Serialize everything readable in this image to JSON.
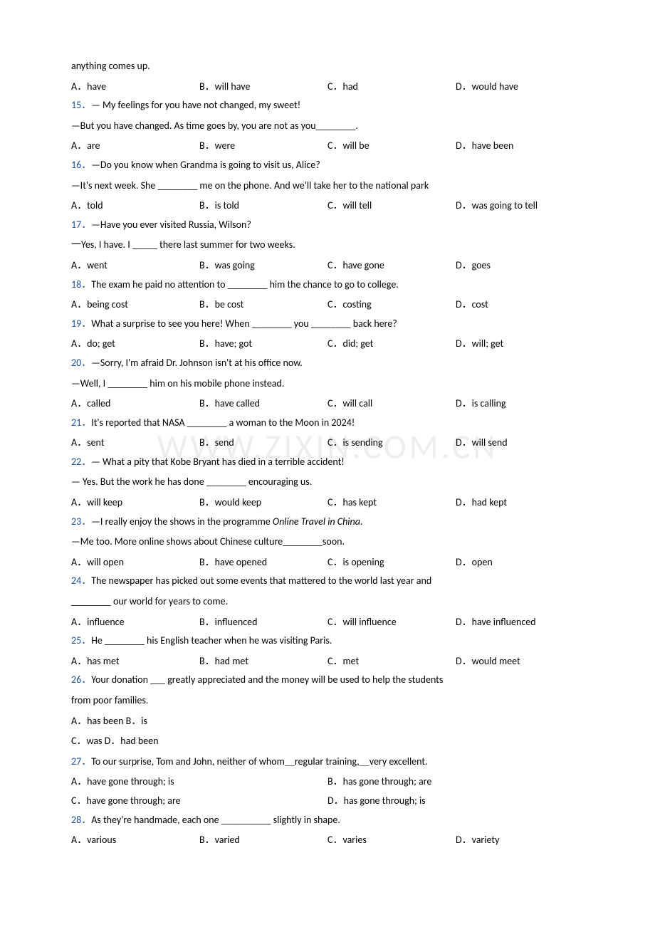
{
  "watermark": "WWW.ZIXIN.COM.CN",
  "frag_top": "anything comes up.",
  "q14_opts": [
    "A．have",
    "B．will have",
    "C．had",
    "D．would have"
  ],
  "q15_num": "15．",
  "q15_l1": "— My feelings for you have not changed, my sweet!",
  "q15_l2": "—But you have changed. As time goes by, you are not as you________.",
  "q15_opts": [
    "A．are",
    "B．were",
    "C．will be",
    "D．have been"
  ],
  "q16_num": "16．",
  "q16_l1": "—Do you know when Grandma is going to visit us, Alice?",
  "q16_l2": "—It's next week. She ________ me on the phone. And we'll take her to the national park",
  "q16_opts": [
    "A．told",
    "B．is told",
    "C．will tell",
    "D．was going to tell"
  ],
  "q17_num": "17．",
  "q17_l1": "—Have you ever visited Russia, Wilson?",
  "q17_l2": "一Yes, I have. I _____ there last summer for two weeks.",
  "q17_opts": [
    "A．went",
    "B．was going",
    "C．have gone",
    "D．goes"
  ],
  "q18_num": "18．",
  "q18_l1": "The exam he paid no attention to ________ him the chance to go to college.",
  "q18_opts": [
    "A．being cost",
    "B．be cost",
    "C．costing",
    "D．cost"
  ],
  "q19_num": "19．",
  "q19_l1": "What a surprise to see you here! When ________ you ________ back here?",
  "q19_opts": [
    "A．do; get",
    "B．have; got",
    "C．did; get",
    "D．will; get"
  ],
  "q20_num": "20．",
  "q20_l1": "—Sorry, I'm afraid Dr. Johnson isn't at his office now.",
  "q20_l2": "—Well, I ________ him on his mobile phone instead.",
  "q20_opts": [
    "A．called",
    "B．have called",
    "C．will call",
    "D．is calling"
  ],
  "q21_num": "21．",
  "q21_l1": "It's reported that NASA ________ a woman to the Moon in 2024!",
  "q21_opts": [
    "A．sent",
    "B．send",
    "C．is sending",
    "D．will send"
  ],
  "q22_num": "22．",
  "q22_l1": "— What a pity that Kobe Bryant has died in a terrible accident!",
  "q22_l2": "— Yes. But the work he has done ________ encouraging us.",
  "q22_opts": [
    "A．will keep",
    "B．would keep",
    "C．has kept",
    "D．had kept"
  ],
  "q23_num": "23．",
  "q23_l1a": "—I really enjoy the shows in the programme ",
  "q23_l1b": "Online Travel in China",
  "q23_l1c": ".",
  "q23_l2": "—Me too. More online shows about Chinese culture________soon.",
  "q23_opts": [
    "A．will open",
    "B．have opened",
    "C．is opening",
    "D．open"
  ],
  "q24_num": "24．",
  "q24_l1": "The newspaper has picked out some events that mattered to the world last year and",
  "q24_l2": "________ our world for years to come.",
  "q24_opts": [
    "A．influence",
    "B．influenced",
    "C．will influence",
    "D．have influenced"
  ],
  "q25_num": "25．",
  "q25_l1": "He ________ his English teacher when he was visiting Paris.",
  "q25_opts": [
    "A．has met",
    "B．had met",
    "C．met",
    "D．would meet"
  ],
  "q26_num": "26．",
  "q26_l1": "Your donation ___ greatly appreciated and the money will be used to help the students",
  "q26_l2": "from poor families.",
  "q26_opts1": "A．has been   B．is",
  "q26_opts2": "C．was   D．had been",
  "q27_num": "27．",
  "q27_l1": "To our surprise, Tom and John, neither of whom＿regular training,＿very excellent.",
  "q27_opts": [
    "A．have gone through; is",
    "B．has gone through; are",
    "C．have gone through; are",
    "D．has gone through; is"
  ],
  "q28_num": "28．",
  "q28_l1": "As they're handmade, each one __________ slightly in shape.",
  "q28_opts": [
    "A．various",
    "B．varied",
    "C．varies",
    "D．variety"
  ]
}
